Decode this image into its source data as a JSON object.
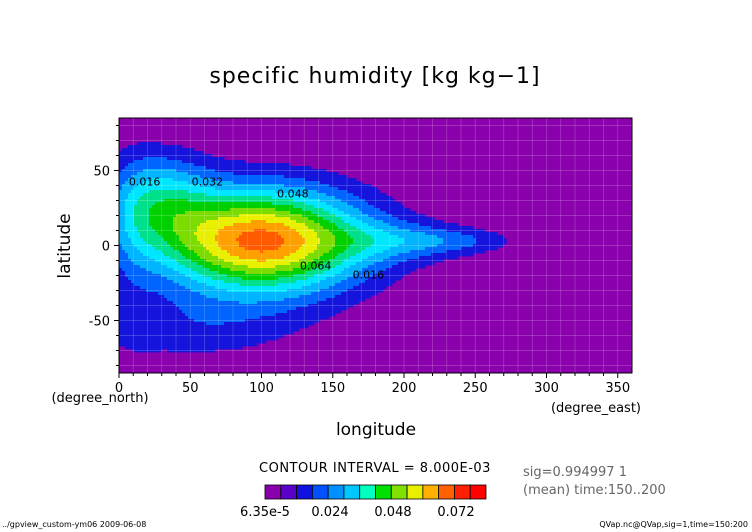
{
  "chart_data": {
    "type": "contour",
    "title": "specific humidity [kg kg−1]",
    "xlabel": "longitude",
    "x_units": "(degree_east)",
    "ylabel": "latitude",
    "y_units": "(degree_north)",
    "xlim": [
      0,
      360
    ],
    "ylim": [
      -85,
      85
    ],
    "xticks": [
      0,
      50,
      100,
      150,
      200,
      250,
      300,
      350
    ],
    "yticks": [
      -50,
      0,
      50
    ],
    "contour_interval_text": "CONTOUR INTERVAL = 8.000E-03",
    "contour_levels": [
      0.008,
      0.016,
      0.024,
      0.032,
      0.04,
      0.048,
      0.056,
      0.064,
      0.072,
      0.08
    ],
    "contour_labels": [
      {
        "text": "0.016",
        "x": 18,
        "y": 40
      },
      {
        "text": "0.032",
        "x": 62,
        "y": 40
      },
      {
        "text": "0.048",
        "x": 122,
        "y": 32
      },
      {
        "text": "0.064",
        "x": 138,
        "y": -16
      },
      {
        "text": "0.016",
        "x": 175,
        "y": -22
      }
    ],
    "colorbar": {
      "tick_labels": [
        "6.35e-5",
        "0.024",
        "0.048",
        "0.072"
      ],
      "colors": [
        "#8b00ad",
        "#5a00c8",
        "#1010e0",
        "#0050ff",
        "#0090ff",
        "#00c8ff",
        "#00ffc0",
        "#00e000",
        "#80e000",
        "#e8f000",
        "#ffb000",
        "#ff6000",
        "#ff2000",
        "#ff0000"
      ]
    },
    "info": [
      "sig=0.994997 1",
      "(mean) time:150..200"
    ],
    "footer_left": "../gpview_custom-ym06   2009-06-08",
    "footer_right": "QVap.nc@QVap,sig=1,time=150:200",
    "background_color": "#8b00ad"
  }
}
